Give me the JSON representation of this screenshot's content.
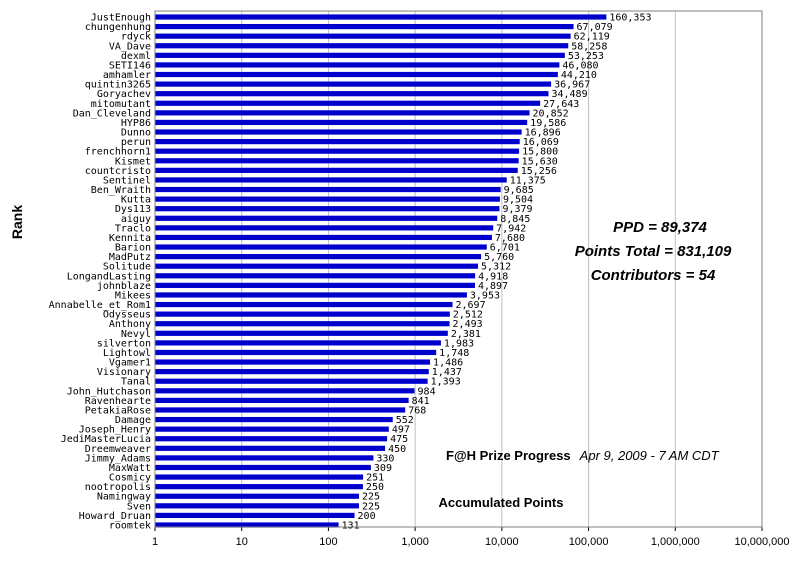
{
  "chart_data": {
    "type": "bar",
    "orientation": "horizontal",
    "x_scale": "log",
    "xlim": [
      1,
      10000000
    ],
    "x_ticks": [
      "1",
      "10",
      "100",
      "1,000",
      "10,000",
      "100,000",
      "1,000,000",
      "10,000,000"
    ],
    "xlabel": "Accumulated Points",
    "ylabel": "Rank",
    "title": "F@H Prize Progress",
    "subtitle": "Apr 9, 2009 - 7 AM CDT",
    "grid": true,
    "bar_color": "#0000cc",
    "stats": [
      "PPD = 89,374",
      "Points Total = 831,109",
      "Contributors = 54"
    ],
    "categories": [
      "JustEnough",
      "chungenhung",
      "rdyck",
      "VA_Dave",
      "dexml",
      "SETI146",
      "amhamler",
      "quintin3265",
      "Goryachev",
      "mitomutant",
      "Dan_Cleveland",
      "HYP86",
      "Dunno",
      "perun",
      "frenchhorn1",
      "Kismet",
      "countcristo",
      "Sentinel",
      "Ben_Wraith",
      "Kutta",
      "Dys113",
      "aiguy",
      "Traclo",
      "Kennita",
      "Barion",
      "MadPutz",
      "Solitude",
      "LongandLasting",
      "johnblaze",
      "Mikees",
      "Annabelle_et_Rom1",
      "Odysseus",
      "Anthony",
      "Nevyl",
      "silverton",
      "Lightowl",
      "Vgamer1",
      "Visionary",
      "Tanal",
      "John_Hutchason",
      "Ravenhearte",
      "PetakiaRose",
      "Damage",
      "Joseph_Henry",
      "JediMasterLucia",
      "Dreemweaver",
      "Jimmy_Adams",
      "MaxWatt",
      "Cosmicy",
      "nootropolis",
      "Namingway",
      "Sven",
      "Howard_Druan",
      "roomtek"
    ],
    "values": [
      160353,
      67079,
      62119,
      58258,
      53253,
      46080,
      44210,
      36967,
      34489,
      27643,
      20852,
      19586,
      16896,
      16069,
      15800,
      15630,
      15256,
      11375,
      9685,
      9504,
      9379,
      8845,
      7942,
      7680,
      6701,
      5760,
      5312,
      4918,
      4897,
      3953,
      2697,
      2512,
      2493,
      2381,
      1983,
      1748,
      1486,
      1437,
      1393,
      984,
      841,
      768,
      552,
      497,
      475,
      450,
      330,
      309,
      251,
      250,
      225,
      225,
      200,
      131
    ],
    "value_labels": [
      "160,353",
      "67,079",
      "62,119",
      "58,258",
      "53,253",
      "46,080",
      "44,210",
      "36,967",
      "34,489",
      "27,643",
      "20,852",
      "19,586",
      "16,896",
      "16,069",
      "15,800",
      "15,630",
      "15,256",
      "11,375",
      "9,685",
      "9,504",
      "9,379",
      "8,845",
      "7,942",
      "7,680",
      "6,701",
      "5,760",
      "5,312",
      "4,918",
      "4,897",
      "3,953",
      "2,697",
      "2,512",
      "2,493",
      "2,381",
      "1,983",
      "1,748",
      "1,486",
      "1,437",
      "1,393",
      "984",
      "841",
      "768",
      "552",
      "497",
      "475",
      "450",
      "330",
      "309",
      "251",
      "250",
      "225",
      "225",
      "200",
      "131"
    ]
  }
}
